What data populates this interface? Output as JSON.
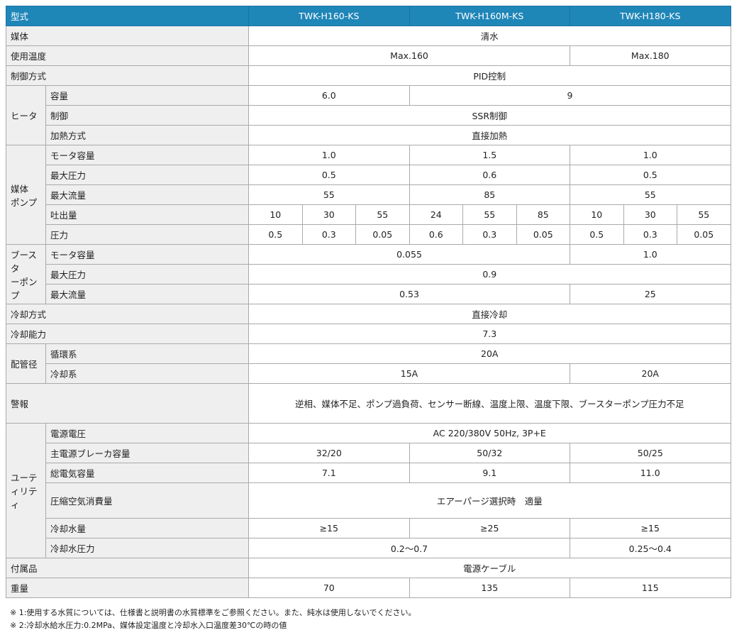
{
  "header": {
    "label": "型式",
    "models": [
      "TWK-H160-KS",
      "TWK-H160M-KS",
      "TWK-H180-KS"
    ]
  },
  "colors": {
    "header_bg": "#1f86b8",
    "label_bg": "#efefef"
  },
  "rows": [
    {
      "label": "媒体",
      "cells": [
        {
          "t": "清水",
          "s": 9
        }
      ]
    },
    {
      "label": "使用温度",
      "cells": [
        {
          "t": "Max.160",
          "s": 6
        },
        {
          "t": "Max.180",
          "s": 3
        }
      ]
    },
    {
      "label": "制御方式",
      "cells": [
        {
          "t": "PID控制",
          "s": 9
        }
      ]
    },
    {
      "group": "ヒータ",
      "gspan": 3,
      "label": "容量",
      "cells": [
        {
          "t": "6.0",
          "s": 3
        },
        {
          "t": "9",
          "s": 6
        }
      ]
    },
    {
      "label": "制御",
      "cells": [
        {
          "t": "SSR制御",
          "s": 9
        }
      ]
    },
    {
      "label": "加熱方式",
      "cells": [
        {
          "t": "直接加熱",
          "s": 9
        }
      ]
    },
    {
      "group": "媒体\nポンプ",
      "gspan": 5,
      "label": "モータ容量",
      "cells": [
        {
          "t": "1.0",
          "s": 3
        },
        {
          "t": "1.5",
          "s": 3
        },
        {
          "t": "1.0",
          "s": 3
        }
      ]
    },
    {
      "label": "最大圧力",
      "cells": [
        {
          "t": "0.5",
          "s": 3
        },
        {
          "t": "0.6",
          "s": 3
        },
        {
          "t": "0.5",
          "s": 3
        }
      ]
    },
    {
      "label": "最大流量",
      "cells": [
        {
          "t": "55",
          "s": 3
        },
        {
          "t": "85",
          "s": 3
        },
        {
          "t": "55",
          "s": 3
        }
      ]
    },
    {
      "label": "吐出量",
      "cells": [
        {
          "t": "10",
          "s": 1
        },
        {
          "t": "30",
          "s": 1
        },
        {
          "t": "55",
          "s": 1
        },
        {
          "t": "24",
          "s": 1
        },
        {
          "t": "55",
          "s": 1
        },
        {
          "t": "85",
          "s": 1
        },
        {
          "t": "10",
          "s": 1
        },
        {
          "t": "30",
          "s": 1
        },
        {
          "t": "55",
          "s": 1
        }
      ]
    },
    {
      "label": "圧力",
      "cells": [
        {
          "t": "0.5",
          "s": 1
        },
        {
          "t": "0.3",
          "s": 1
        },
        {
          "t": "0.05",
          "s": 1
        },
        {
          "t": "0.6",
          "s": 1
        },
        {
          "t": "0.3",
          "s": 1
        },
        {
          "t": "0.05",
          "s": 1
        },
        {
          "t": "0.5",
          "s": 1
        },
        {
          "t": "0.3",
          "s": 1
        },
        {
          "t": "0.05",
          "s": 1
        }
      ]
    },
    {
      "group": "ブースタ\nーポンプ",
      "gspan": 3,
      "label": "モータ容量",
      "cells": [
        {
          "t": "0.055",
          "s": 6
        },
        {
          "t": "1.0",
          "s": 3
        }
      ]
    },
    {
      "label": "最大圧力",
      "cells": [
        {
          "t": "0.9",
          "s": 9
        }
      ]
    },
    {
      "label": "最大流量",
      "cells": [
        {
          "t": "0.53",
          "s": 6
        },
        {
          "t": "25",
          "s": 3
        }
      ]
    },
    {
      "label": "冷却方式",
      "cells": [
        {
          "t": "直接冷却",
          "s": 9
        }
      ]
    },
    {
      "label": "冷却能力",
      "cells": [
        {
          "t": "7.3",
          "s": 9
        }
      ]
    },
    {
      "group": "配管径",
      "gspan": 2,
      "label": "循環系",
      "cells": [
        {
          "t": "20A",
          "s": 9
        }
      ]
    },
    {
      "label": "冷却系",
      "cells": [
        {
          "t": "15A",
          "s": 6
        },
        {
          "t": "20A",
          "s": 3
        }
      ]
    },
    {
      "label": "警報",
      "tall": "tall",
      "cells": [
        {
          "t": "逆相、媒体不足、ポンプ過負荷、センサー断線、温度上限、温度下限、ブースターポンプ圧力不足",
          "s": 9
        }
      ]
    },
    {
      "group": "ユーテ\nィリティ",
      "gspan": 6,
      "label": "電源電圧",
      "cells": [
        {
          "t": "AC 220/380V 50Hz, 3P+E",
          "s": 9
        }
      ]
    },
    {
      "label": "主電源ブレーカ容量",
      "cells": [
        {
          "t": "32/20",
          "s": 3
        },
        {
          "t": "50/32",
          "s": 3
        },
        {
          "t": "50/25",
          "s": 3
        }
      ]
    },
    {
      "label": "総電気容量",
      "cells": [
        {
          "t": "7.1",
          "s": 3
        },
        {
          "t": "9.1",
          "s": 3
        },
        {
          "t": "11.0",
          "s": 3
        }
      ]
    },
    {
      "label": "圧縮空気消費量",
      "tall": "mid",
      "cells": [
        {
          "t": "エアーパージ選択時　適量",
          "s": 9
        }
      ]
    },
    {
      "label": "冷却水量",
      "cells": [
        {
          "t": "≥15",
          "s": 3
        },
        {
          "t": "≥25",
          "s": 3
        },
        {
          "t": "≥15",
          "s": 3
        }
      ]
    },
    {
      "label": "冷却水圧力",
      "cells": [
        {
          "t": "0.2～0.7",
          "s": 6
        },
        {
          "t": "0.25～0.4",
          "s": 3
        }
      ]
    },
    {
      "label": "付属品",
      "cells": [
        {
          "t": "電源ケーブル",
          "s": 9
        }
      ]
    },
    {
      "label": "重量",
      "cells": [
        {
          "t": "70",
          "s": 3
        },
        {
          "t": "135",
          "s": 3
        },
        {
          "t": "115",
          "s": 3
        }
      ]
    }
  ],
  "notes": [
    "※ 1:使用する水質については、仕様書と説明書の水質標準をご参照ください。また、純水は使用しないでください。",
    "※ 2:冷却水給水圧力:0.2MPa、媒体設定温度と冷却水入口温度差30℃の時の値"
  ]
}
